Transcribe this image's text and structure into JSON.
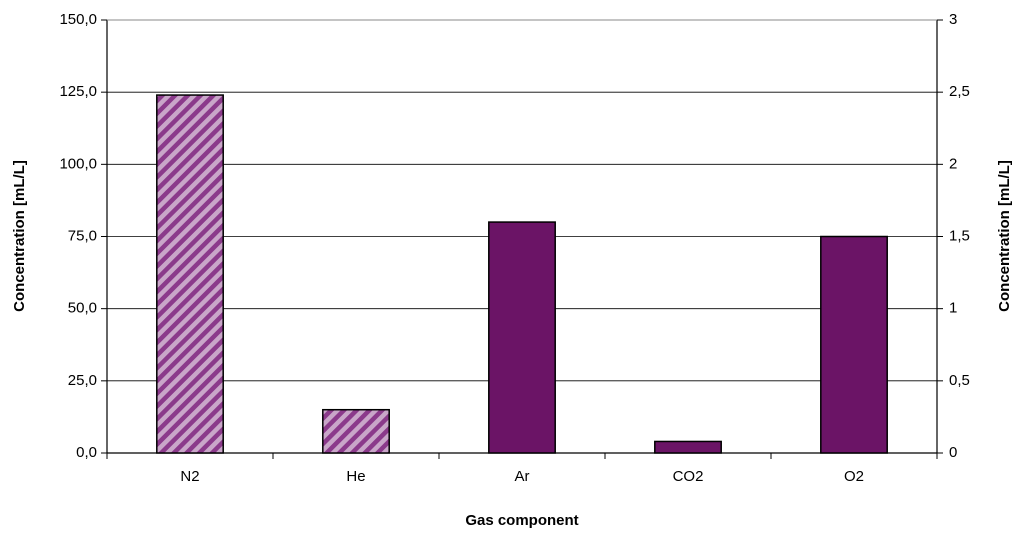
{
  "chart_data": {
    "type": "bar",
    "x_label": "Gas component",
    "y_label": "Concentration [mL/L]",
    "y2_label": "Concentration [mL/L]",
    "categories": [
      "N2",
      "He",
      "Ar",
      "CO2",
      "O2"
    ],
    "series": [
      {
        "color": "#8b3a8b",
        "pattern": "hatch",
        "values": [
          124,
          15,
          null,
          null,
          null
        ]
      },
      {
        "color": "#6b1466",
        "axis": "y2",
        "values": [
          null,
          null,
          1.6,
          0.08,
          1.5
        ]
      }
    ],
    "ylim": [
      0,
      150
    ],
    "yticks": [
      {
        "value": 0,
        "label": "0,0"
      },
      {
        "value": 25,
        "label": "25,0"
      },
      {
        "value": 50,
        "label": "50,0"
      },
      {
        "value": 75,
        "label": "75,0"
      },
      {
        "value": 100,
        "label": "100,0"
      },
      {
        "value": 125,
        "label": "125,0"
      },
      {
        "value": 150,
        "label": "150,0"
      }
    ],
    "y2lim": [
      0,
      3
    ],
    "y2ticks": [
      0,
      {
        "value": 0.5,
        "label": "0,5"
      },
      1,
      {
        "value": 1.5,
        "label": "1,5"
      },
      2,
      {
        "value": 2.5,
        "label": "2,5"
      },
      3
    ],
    "grid": true
  }
}
